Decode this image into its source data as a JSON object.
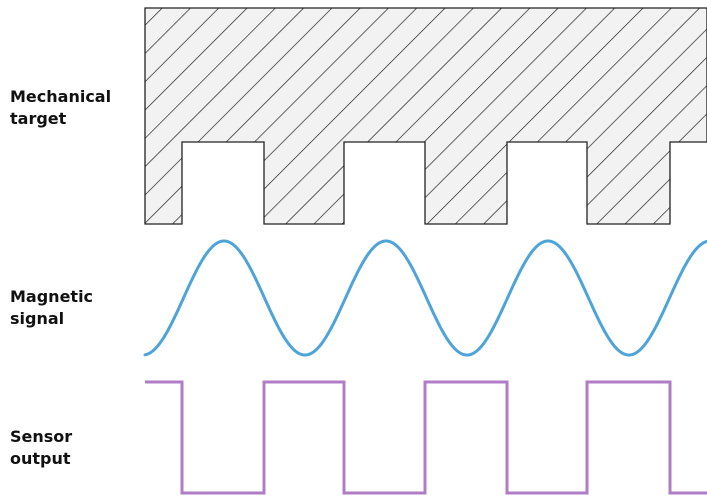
{
  "labels": {
    "mechanical_target": {
      "line1": "Mechanical",
      "line2": "target"
    },
    "magnetic_signal": {
      "line1": "Magnetic",
      "line2": "signal"
    },
    "sensor_output": {
      "line1": "Sensor",
      "line2": "output"
    }
  },
  "colors": {
    "target_outline": "#222222",
    "target_fill": "#f2f2f2",
    "hatch": "#222222",
    "magnetic_signal": "#4ea3d8",
    "sensor_output": "#b07cc6",
    "label_text": "#111111"
  },
  "target": {
    "tooth_count": 4,
    "slot_count": 3
  }
}
